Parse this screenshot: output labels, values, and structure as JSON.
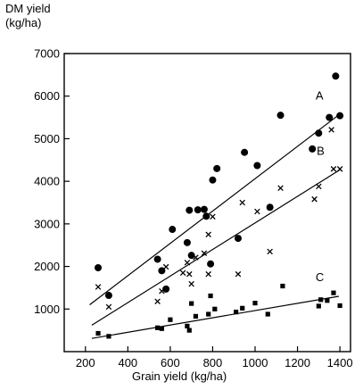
{
  "chart_data": {
    "type": "scatter",
    "ylabel_line1": "DM yield",
    "ylabel_line2": "(kg/ha)",
    "xlabel": "Grain yield (kg/ha)",
    "xlim": [
      100,
      1450
    ],
    "ylim": [
      0,
      7000
    ],
    "xticks": [
      200,
      400,
      600,
      800,
      1000,
      1200,
      1400
    ],
    "yticks": [
      1000,
      2000,
      3000,
      4000,
      5000,
      6000,
      7000
    ],
    "grid": false,
    "legend": "none",
    "series": [
      {
        "name": "A",
        "marker": "circle",
        "points": [
          [
            260,
            1970
          ],
          [
            310,
            1320
          ],
          [
            540,
            2170
          ],
          [
            560,
            1900
          ],
          [
            580,
            1470
          ],
          [
            610,
            2870
          ],
          [
            680,
            2560
          ],
          [
            690,
            3320
          ],
          [
            700,
            2260
          ],
          [
            730,
            3330
          ],
          [
            760,
            3340
          ],
          [
            770,
            3180
          ],
          [
            790,
            2060
          ],
          [
            800,
            4030
          ],
          [
            820,
            4300
          ],
          [
            920,
            2660
          ],
          [
            950,
            4680
          ],
          [
            1010,
            4370
          ],
          [
            1070,
            3390
          ],
          [
            1120,
            5550
          ],
          [
            1270,
            4760
          ],
          [
            1300,
            5130
          ],
          [
            1350,
            5500
          ],
          [
            1380,
            6470
          ],
          [
            1400,
            5540
          ]
        ],
        "fit": [
          [
            220,
            1100
          ],
          [
            1395,
            5560
          ]
        ]
      },
      {
        "name": "B",
        "marker": "x",
        "points": [
          [
            260,
            1520
          ],
          [
            310,
            1050
          ],
          [
            540,
            1180
          ],
          [
            560,
            1420
          ],
          [
            580,
            1990
          ],
          [
            660,
            1850
          ],
          [
            680,
            2090
          ],
          [
            690,
            1820
          ],
          [
            700,
            1590
          ],
          [
            720,
            2210
          ],
          [
            760,
            2310
          ],
          [
            780,
            2750
          ],
          [
            780,
            1820
          ],
          [
            800,
            3170
          ],
          [
            920,
            1820
          ],
          [
            940,
            3500
          ],
          [
            1010,
            3290
          ],
          [
            1070,
            2350
          ],
          [
            1120,
            3840
          ],
          [
            1280,
            3580
          ],
          [
            1300,
            3880
          ],
          [
            1360,
            5210
          ],
          [
            1370,
            4290
          ],
          [
            1400,
            4290
          ]
        ],
        "fit": [
          [
            230,
            620
          ],
          [
            1400,
            4270
          ]
        ]
      },
      {
        "name": "C",
        "marker": "square",
        "points": [
          [
            260,
            430
          ],
          [
            310,
            360
          ],
          [
            540,
            560
          ],
          [
            560,
            540
          ],
          [
            600,
            750
          ],
          [
            680,
            600
          ],
          [
            690,
            500
          ],
          [
            700,
            1130
          ],
          [
            720,
            830
          ],
          [
            780,
            880
          ],
          [
            790,
            1310
          ],
          [
            810,
            1000
          ],
          [
            910,
            930
          ],
          [
            940,
            1020
          ],
          [
            1000,
            1140
          ],
          [
            1060,
            880
          ],
          [
            1130,
            1540
          ],
          [
            1300,
            1070
          ],
          [
            1310,
            1220
          ],
          [
            1340,
            1200
          ],
          [
            1370,
            1380
          ],
          [
            1400,
            1080
          ]
        ],
        "fit": [
          [
            230,
            310
          ],
          [
            1395,
            1300
          ]
        ]
      }
    ]
  }
}
